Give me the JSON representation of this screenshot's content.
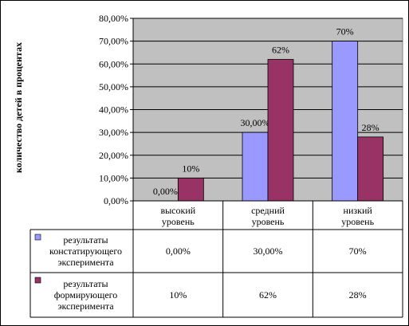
{
  "chart_data": {
    "type": "bar",
    "ylabel": "количество детей в процентах",
    "ylim": [
      0,
      80
    ],
    "yticks": [
      "0,00%",
      "10,00%",
      "20,00%",
      "30,00%",
      "40,00%",
      "50,00%",
      "60,00%",
      "70,00%",
      "80,00%"
    ],
    "categories": [
      [
        "высокий",
        "уровень"
      ],
      [
        "средний",
        "уровень"
      ],
      [
        "низкий",
        "уровень"
      ]
    ],
    "grid": true,
    "plot_background": "#c0c0c0",
    "series": [
      {
        "name": [
          "результаты",
          "констатирующего",
          "эксперимента"
        ],
        "color": "#9999ff",
        "values": [
          0,
          30,
          70
        ],
        "labels": [
          "0,00%",
          "30,00%",
          "70%"
        ],
        "table": [
          "0,00%",
          "30,00%",
          "70%"
        ]
      },
      {
        "name": [
          "результаты",
          "формирующего",
          "эксперимента"
        ],
        "color": "#993366",
        "values": [
          10,
          62,
          28
        ],
        "labels": [
          "10%",
          "62%",
          "28%"
        ],
        "table": [
          "10%",
          "62%",
          "28%"
        ]
      }
    ]
  }
}
